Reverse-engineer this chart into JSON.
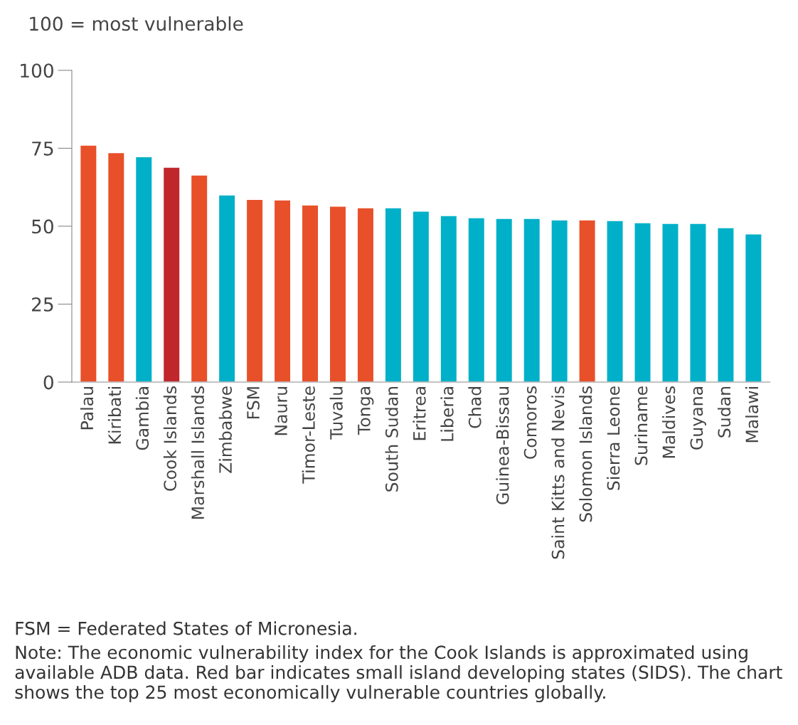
{
  "chart_data": {
    "type": "bar",
    "ylabel": "100 = most vulnerable",
    "categories": [
      "Palau",
      "Kiribati",
      "Gambia",
      "Cook Islands",
      "Marshall Islands",
      "Zimbabwe",
      "FSM",
      "Nauru",
      "Timor-Leste",
      "Tuvalu",
      "Tonga",
      "South Sudan",
      "Eritrea",
      "Liberia",
      "Chad",
      "Guinea-Bissau",
      "Comoros",
      "Saint Kitts and Nevis",
      "Solomon Islands",
      "Sierra Leone",
      "Suriname",
      "Maldives",
      "Guyana",
      "Sudan",
      "Malawi"
    ],
    "values": [
      76,
      73.6,
      72.3,
      68.9,
      66.4,
      60,
      58.6,
      58.4,
      56.8,
      56.4,
      55.9,
      55.9,
      54.8,
      53.4,
      52.7,
      52.5,
      52.5,
      52,
      52,
      51.8,
      51.1,
      50.9,
      50.9,
      49.5,
      47.5
    ],
    "colors": [
      "#e8502a",
      "#e8502a",
      "#00b0c8",
      "#c0272d",
      "#e8502a",
      "#00b0c8",
      "#e8502a",
      "#e8502a",
      "#e8502a",
      "#e8502a",
      "#e8502a",
      "#00b0c8",
      "#00b0c8",
      "#00b0c8",
      "#00b0c8",
      "#00b0c8",
      "#00b0c8",
      "#00b0c8",
      "#e8502a",
      "#00b0c8",
      "#00b0c8",
      "#00b0c8",
      "#00b0c8",
      "#00b0c8",
      "#00b0c8"
    ],
    "ylim": [
      0,
      100
    ],
    "yticks": [
      0,
      25,
      50,
      75,
      100
    ],
    "grid": false,
    "annotations": [
      "FSM = Federated States of Micronesia.",
      "Note: The economic vulnerability index for the Cook Islands is approximated using available ADB data. Red bar indicates small island developing states (SIDS). The chart shows the top 25 most economically vulnerable countries globally."
    ]
  }
}
